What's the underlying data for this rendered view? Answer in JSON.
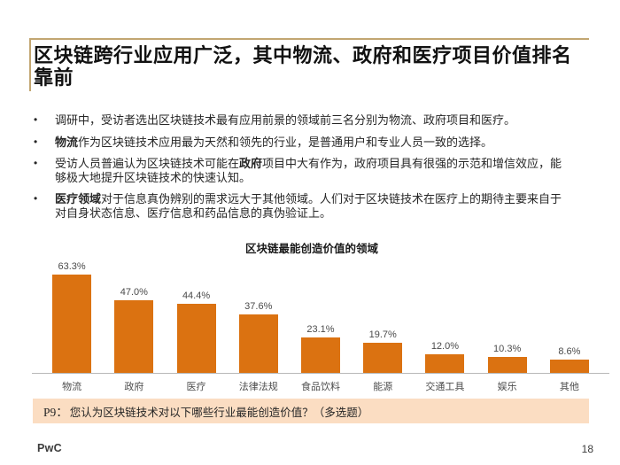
{
  "slide": {
    "title": "区块链跨行业应用广泛，其中物流、政府和医疗项目价值排名靠前",
    "logo": "PwC",
    "page_number": "18"
  },
  "bullets": [
    {
      "segments": [
        {
          "text": "调研中，受访者选出区块链技术最有应用前景的领域前三名分别为物流、政府项目和医疗。",
          "bold": false
        }
      ]
    },
    {
      "segments": [
        {
          "text": "物流",
          "bold": true
        },
        {
          "text": "作为区块链技术应用最为天然和领先的行业，是普通用户和专业人员一致的选择。",
          "bold": false
        }
      ]
    },
    {
      "segments": [
        {
          "text": "受访人员普遍认为区块链技术可能在",
          "bold": false
        },
        {
          "text": "政府",
          "bold": true
        },
        {
          "text": "项目中大有作为，政府项目具有很强的示范和增信效应，能够极大地提升区块链技术的快速认知。",
          "bold": false
        }
      ]
    },
    {
      "segments": [
        {
          "text": "医疗领域",
          "bold": true
        },
        {
          "text": "对于信息真伪辨别的需求远大于其他领域。人们对于区块链技术在医疗上的期待主要来自于对自身状态信息、医疗信息和药品信息的真伪验证上。",
          "bold": false
        }
      ]
    }
  ],
  "chart_data": {
    "type": "bar",
    "title": "区块链最能创造价值的领域",
    "categories": [
      "物流",
      "政府",
      "医疗",
      "法律法规",
      "食品饮料",
      "能源",
      "交通工具",
      "娱乐",
      "其他"
    ],
    "values": [
      63.3,
      47.0,
      44.4,
      37.6,
      23.1,
      19.7,
      12.0,
      10.3,
      8.6
    ],
    "value_labels": [
      "63.3%",
      "47.0%",
      "44.4%",
      "37.6%",
      "23.1%",
      "19.7%",
      "12.0%",
      "10.3%",
      "8.6%"
    ],
    "xlabel": "",
    "ylabel": "",
    "ylim": [
      0,
      70
    ],
    "grid": false,
    "legend": "none",
    "bar_color": "#DB7211",
    "axis_color": "#B8B8B8"
  },
  "footnote": {
    "prefix": "P9：",
    "question": "您认为区块链技术对以下哪些行业最能创造价值？（多选题）",
    "bg_color": "#FBDDC2"
  },
  "decor": {
    "bracket_color": "#C2A671"
  }
}
